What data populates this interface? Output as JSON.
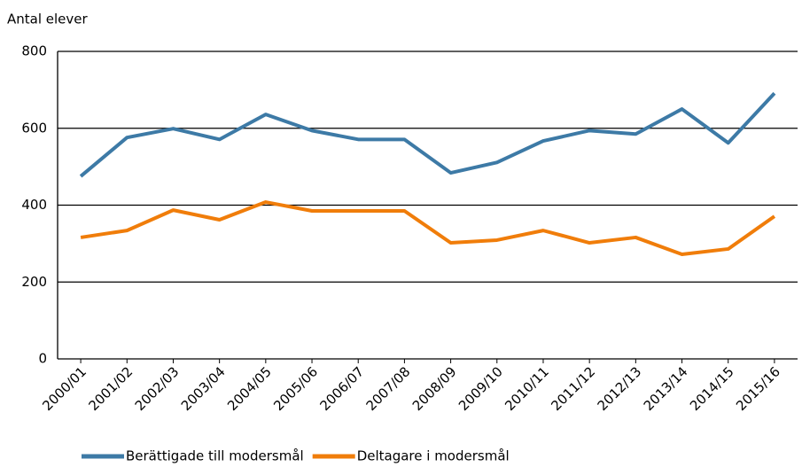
{
  "chart_data": {
    "type": "line",
    "y_label": "Antal elever",
    "categories": [
      "2000/01",
      "2001/02",
      "2002/03",
      "2003/04",
      "2004/05",
      "2005/06",
      "2006/07",
      "2007/08",
      "2008/09",
      "2009/10",
      "2010/11",
      "2011/12",
      "2012/13",
      "2013/14",
      "2014/15",
      "2015/16"
    ],
    "series": [
      {
        "name": "Berättigade till modersmål",
        "color": "#3d7aa6",
        "values": [
          475,
          576,
          599,
          571,
          636,
          594,
          571,
          571,
          484,
          511,
          567,
          594,
          585,
          650,
          562,
          691
        ]
      },
      {
        "name": "Deltagare i modersmål",
        "color": "#f07d0a",
        "values": [
          316,
          334,
          387,
          362,
          408,
          385,
          385,
          385,
          302,
          309,
          334,
          302,
          316,
          272,
          286,
          371
        ]
      }
    ],
    "ylim": [
      0,
      800
    ],
    "yticks": [
      0,
      200,
      400,
      600,
      800
    ],
    "grid": true
  }
}
